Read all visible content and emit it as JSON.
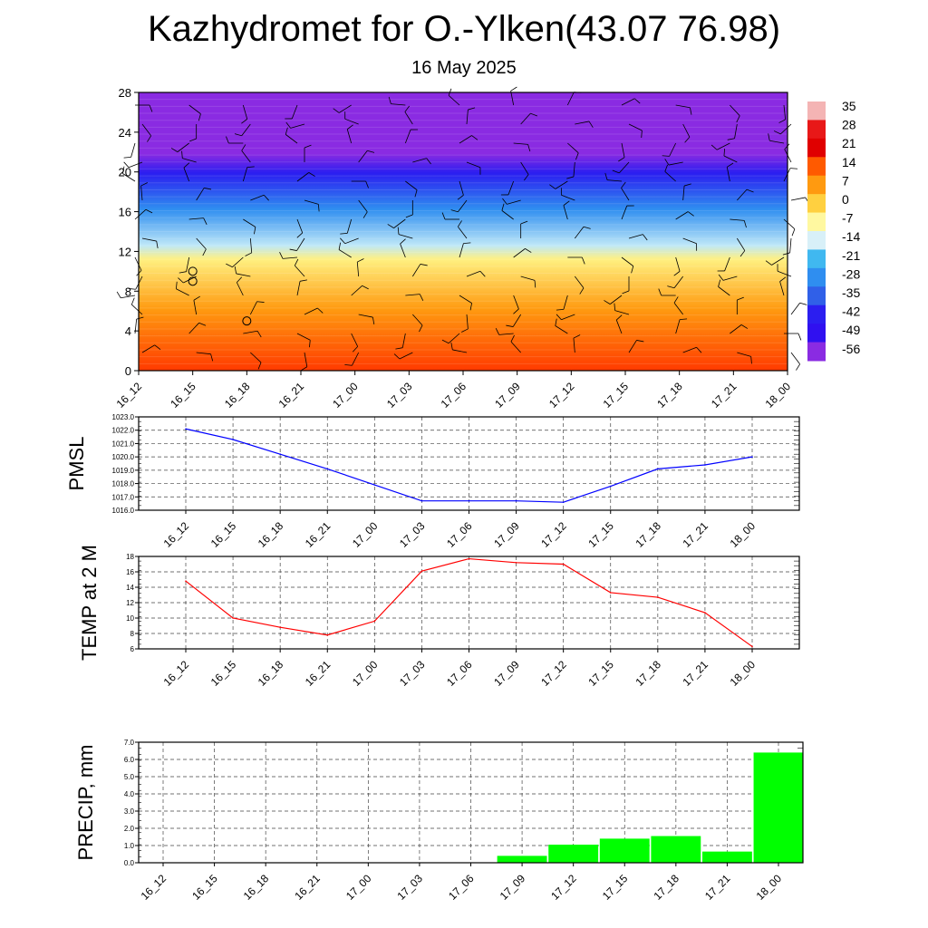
{
  "title": "Kazhydromet for O.-Ylken(43.07 76.98)",
  "subtitle": "16 May 2025",
  "time_labels": [
    "16_12",
    "16_15",
    "16_18",
    "16_21",
    "17_00",
    "17_03",
    "17_06",
    "17_09",
    "17_12",
    "17_15",
    "17_18",
    "17_21",
    "18_00"
  ],
  "chart_data": [
    {
      "type": "heatmap",
      "name": "temperature cross-section",
      "y_ticks": [
        0,
        4,
        8,
        12,
        16,
        20,
        24,
        28
      ],
      "ylim": [
        0,
        28
      ],
      "colorbar_labels": [
        "35",
        "28",
        "21",
        "14",
        "7",
        "0",
        "-7",
        "-14",
        "-21",
        "-28",
        "-35",
        "-42",
        "-49",
        "-56"
      ],
      "colors": {
        "top": "#8a2be2",
        "deep": "#2b1ef0",
        "mid": "#2f8ef0",
        "light": "#bfe8f8",
        "yellow": "#fff080",
        "orange": "#ff9a10",
        "red": "#ff3a00"
      },
      "markers_circles": [
        {
          "x": "16_15",
          "y": 10
        },
        {
          "x": "16_15",
          "y": 9
        },
        {
          "x": "16_18",
          "y": 5
        }
      ]
    },
    {
      "type": "line",
      "ylabel": "PMSL",
      "ylim": [
        1016.0,
        1023.0
      ],
      "y_ticks": [
        "1016.0",
        "1017.0",
        "1018.0",
        "1019.0",
        "1020.0",
        "1021.0",
        "1022.0",
        "1023.0"
      ],
      "color": "#0000ff",
      "values": [
        1022.1,
        1021.3,
        1020.2,
        1019.1,
        1017.9,
        1016.7,
        1016.7,
        1016.7,
        1016.6,
        1017.8,
        1019.1,
        1019.4,
        1020.0
      ]
    },
    {
      "type": "line",
      "ylabel": "TEMP at 2 M",
      "ylim": [
        6,
        18
      ],
      "y_ticks": [
        "6",
        "8",
        "10",
        "12",
        "14",
        "16",
        "18"
      ],
      "color": "#ff0000",
      "values": [
        14.8,
        10.0,
        8.8,
        7.8,
        9.6,
        16.1,
        17.7,
        17.2,
        17.0,
        13.3,
        12.7,
        10.7,
        6.3
      ]
    },
    {
      "type": "bar",
      "ylabel": "PRECIP, mm",
      "ylim": [
        0,
        7
      ],
      "y_ticks": [
        "0.0",
        "1.0",
        "2.0",
        "3.0",
        "4.0",
        "5.0",
        "6.0",
        "7.0"
      ],
      "color": "#00ff00",
      "values": [
        0,
        0,
        0,
        0,
        0,
        0,
        0,
        0.4,
        1.05,
        1.4,
        1.55,
        0.65,
        6.4
      ]
    }
  ]
}
